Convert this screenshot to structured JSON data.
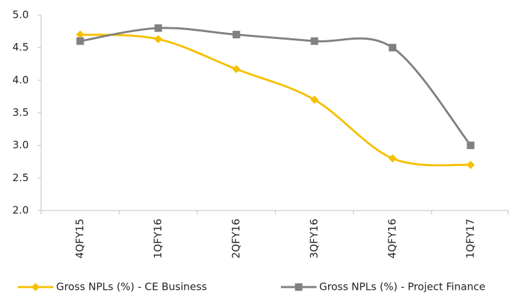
{
  "chart_data": {
    "type": "line",
    "categories": [
      "4QFY15",
      "1QFY16",
      "2QFY16",
      "3QFY16",
      "4QFY16",
      "1QFY17"
    ],
    "series": [
      {
        "name": "Gross NPLs (%) - CE Business",
        "color": "#f5c000",
        "marker": "diamond",
        "values": [
          4.7,
          4.63,
          4.17,
          3.7,
          2.8,
          2.7
        ]
      },
      {
        "name": "Gross NPLs (%) - Project Finance",
        "color": "#808080",
        "marker": "square",
        "values": [
          4.6,
          4.8,
          4.7,
          4.6,
          4.5,
          3.0
        ]
      }
    ],
    "ylim": [
      2.0,
      5.0
    ],
    "yticks": [
      {
        "value": 2.0,
        "label": "2.0"
      },
      2.5,
      {
        "value": 3.0,
        "label": "3.0"
      },
      3.5,
      {
        "value": 4.0,
        "label": "4.0"
      },
      4.5,
      {
        "value": 5.0,
        "label": "5.0"
      }
    ],
    "smooth": true,
    "grid": false,
    "legend": "bottom"
  }
}
